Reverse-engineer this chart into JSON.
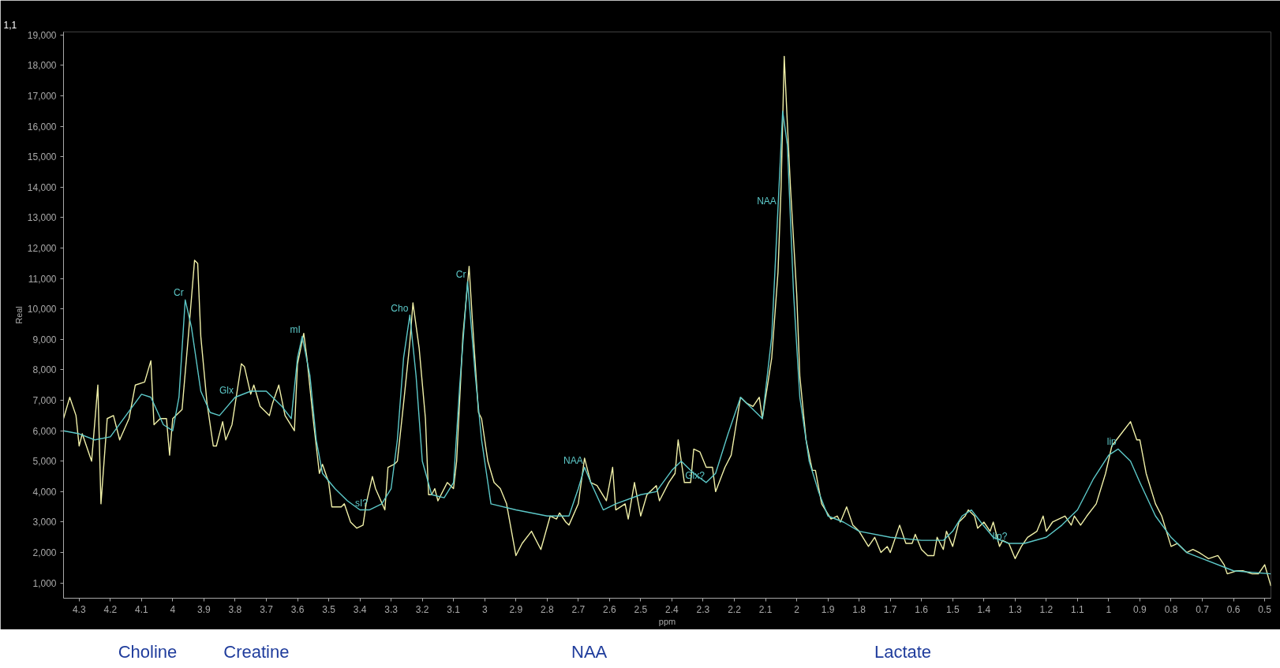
{
  "chart_data": {
    "type": "line",
    "xlabel": "ppm",
    "ylabel": "Real",
    "xlim": [
      4.35,
      0.48
    ],
    "ylim": [
      500,
      19100
    ],
    "xticks": [
      4.3,
      4.2,
      4.1,
      4,
      3.9,
      3.8,
      3.7,
      3.6,
      3.5,
      3.4,
      3.3,
      3.2,
      3.1,
      3,
      2.9,
      2.8,
      2.7,
      2.6,
      2.5,
      2.4,
      2.3,
      2.2,
      2.1,
      2,
      1.9,
      1.8,
      1.7,
      1.6,
      1.5,
      1.4,
      1.3,
      1.2,
      1.1,
      1,
      0.9,
      0.8,
      0.7,
      0.6,
      0.5
    ],
    "yticks": [
      {
        "value": 1000,
        "label": "1,000"
      },
      {
        "value": 2000,
        "label": "2,000"
      },
      {
        "value": 3000,
        "label": "3,000"
      },
      {
        "value": 4000,
        "label": "4,000"
      },
      {
        "value": 5000,
        "label": "5,000"
      },
      {
        "value": 6000,
        "label": "6,000"
      },
      {
        "value": 7000,
        "label": "7,000"
      },
      {
        "value": 8000,
        "label": "8,000"
      },
      {
        "value": 9000,
        "label": "9,000"
      },
      {
        "value": 10000,
        "label": "10,000"
      },
      {
        "value": 11000,
        "label": "11,000"
      },
      {
        "value": 12000,
        "label": "12,000"
      },
      {
        "value": 13000,
        "label": "13,000"
      },
      {
        "value": 14000,
        "label": "14,000"
      },
      {
        "value": 15000,
        "label": "15,000"
      },
      {
        "value": 16000,
        "label": "16,000"
      },
      {
        "value": 17000,
        "label": "17,000"
      },
      {
        "value": 18000,
        "label": "18,000"
      },
      {
        "value": 19000,
        "label": "19,000"
      }
    ],
    "series": [
      {
        "color": "#f0f0a8",
        "x": [
          4.35,
          4.33,
          4.31,
          4.3,
          4.29,
          4.26,
          4.24,
          4.23,
          4.21,
          4.19,
          4.17,
          4.14,
          4.12,
          4.09,
          4.07,
          4.06,
          4.04,
          4.02,
          4.01,
          4.0,
          3.97,
          3.95,
          3.93,
          3.92,
          3.91,
          3.89,
          3.87,
          3.86,
          3.84,
          3.83,
          3.81,
          3.78,
          3.77,
          3.75,
          3.74,
          3.72,
          3.69,
          3.68,
          3.66,
          3.64,
          3.61,
          3.6,
          3.58,
          3.57,
          3.55,
          3.53,
          3.52,
          3.5,
          3.49,
          3.46,
          3.45,
          3.43,
          3.41,
          3.39,
          3.38,
          3.36,
          3.35,
          3.32,
          3.31,
          3.29,
          3.28,
          3.26,
          3.24,
          3.23,
          3.21,
          3.19,
          3.18,
          3.17,
          3.16,
          3.15,
          3.12,
          3.1,
          3.09,
          3.07,
          3.05,
          3.04,
          3.02,
          3.01,
          2.99,
          2.97,
          2.95,
          2.93,
          2.9,
          2.88,
          2.85,
          2.82,
          2.79,
          2.77,
          2.76,
          2.74,
          2.73,
          2.7,
          2.68,
          2.66,
          2.64,
          2.61,
          2.59,
          2.58,
          2.55,
          2.54,
          2.52,
          2.5,
          2.48,
          2.45,
          2.44,
          2.41,
          2.39,
          2.38,
          2.36,
          2.34,
          2.33,
          2.31,
          2.29,
          2.27,
          2.26,
          2.23,
          2.21,
          2.18,
          2.16,
          2.14,
          2.12,
          2.11,
          2.08,
          2.06,
          2.05,
          2.04,
          2.03,
          2.02,
          2.0,
          1.99,
          1.97,
          1.95,
          1.94,
          1.92,
          1.89,
          1.87,
          1.86,
          1.84,
          1.82,
          1.8,
          1.77,
          1.75,
          1.73,
          1.71,
          1.7,
          1.67,
          1.65,
          1.63,
          1.62,
          1.6,
          1.58,
          1.56,
          1.55,
          1.53,
          1.52,
          1.5,
          1.48,
          1.46,
          1.45,
          1.43,
          1.42,
          1.4,
          1.38,
          1.37,
          1.35,
          1.34,
          1.32,
          1.3,
          1.28,
          1.26,
          1.23,
          1.21,
          1.2,
          1.18,
          1.16,
          1.14,
          1.12,
          1.11,
          1.09,
          1.07,
          1.04,
          1.01,
          0.99,
          0.96,
          0.93,
          0.91,
          0.9,
          0.88,
          0.85,
          0.83,
          0.8,
          0.78,
          0.75,
          0.73,
          0.71,
          0.68,
          0.65,
          0.63,
          0.62,
          0.59,
          0.57,
          0.54,
          0.52,
          0.5,
          0.48
        ],
        "values": [
          6400,
          7100,
          6500,
          5500,
          5900,
          5000,
          7500,
          3600,
          6400,
          6500,
          5700,
          6400,
          7500,
          7600,
          8300,
          6200,
          6400,
          6400,
          5200,
          6400,
          6700,
          9100,
          11600,
          11500,
          9100,
          6900,
          5500,
          5500,
          6300,
          5700,
          6200,
          8200,
          8100,
          7200,
          7500,
          6800,
          6500,
          6900,
          7500,
          6500,
          6000,
          8200,
          9200,
          8400,
          6400,
          4600,
          4900,
          4300,
          3500,
          3500,
          3600,
          3000,
          2800,
          2900,
          3600,
          4500,
          4100,
          3400,
          4800,
          4900,
          5000,
          6900,
          8900,
          10200,
          8700,
          6400,
          3900,
          3900,
          4100,
          3700,
          4300,
          4100,
          5000,
          9100,
          11400,
          9700,
          6600,
          6400,
          5000,
          4300,
          4100,
          3600,
          1900,
          2300,
          2700,
          2100,
          3200,
          3100,
          3300,
          3000,
          2900,
          3600,
          5100,
          4300,
          4200,
          3700,
          4800,
          3400,
          3600,
          3100,
          4300,
          3200,
          3900,
          4200,
          3700,
          4300,
          4600,
          5700,
          4300,
          4300,
          5400,
          5300,
          4800,
          4800,
          4000,
          4800,
          5200,
          7100,
          6900,
          6800,
          7100,
          6400,
          8400,
          11200,
          14000,
          18300,
          16100,
          14000,
          10500,
          7800,
          5700,
          4700,
          4700,
          3600,
          3100,
          3200,
          3000,
          3500,
          2900,
          2700,
          2200,
          2500,
          2000,
          2200,
          2000,
          2900,
          2300,
          2300,
          2600,
          2100,
          1900,
          1900,
          2500,
          2100,
          2700,
          2200,
          3000,
          3200,
          3400,
          3200,
          2800,
          3000,
          2700,
          3000,
          2200,
          2400,
          2300,
          1800,
          2200,
          2500,
          2700,
          3200,
          2700,
          3000,
          3100,
          3200,
          2900,
          3200,
          2900,
          3200,
          3600,
          4600,
          5500,
          5900,
          6300,
          5700,
          5700,
          4600,
          3600,
          3200,
          2200,
          2300,
          2000,
          2100,
          2000,
          1800,
          1900,
          1600,
          1300,
          1400,
          1400,
          1300,
          1300,
          1600,
          900
        ]
      },
      {
        "color": "#5cc8c8",
        "x": [
          4.35,
          4.3,
          4.25,
          4.2,
          4.15,
          4.1,
          4.07,
          4.03,
          4.0,
          3.98,
          3.96,
          3.94,
          3.91,
          3.88,
          3.85,
          3.8,
          3.75,
          3.7,
          3.65,
          3.62,
          3.6,
          3.585,
          3.56,
          3.54,
          3.52,
          3.48,
          3.44,
          3.4,
          3.37,
          3.33,
          3.3,
          3.28,
          3.26,
          3.24,
          3.22,
          3.2,
          3.17,
          3.13,
          3.1,
          3.08,
          3.055,
          3.03,
          3.01,
          2.98,
          2.9,
          2.8,
          2.73,
          2.7,
          2.68,
          2.66,
          2.62,
          2.58,
          2.5,
          2.45,
          2.4,
          2.37,
          2.33,
          2.29,
          2.26,
          2.22,
          2.18,
          2.13,
          2.11,
          2.08,
          2.06,
          2.045,
          2.03,
          2.01,
          1.99,
          1.96,
          1.93,
          1.9,
          1.85,
          1.8,
          1.7,
          1.6,
          1.53,
          1.5,
          1.47,
          1.44,
          1.41,
          1.37,
          1.32,
          1.27,
          1.2,
          1.15,
          1.1,
          1.05,
          1.0,
          0.97,
          0.93,
          0.9,
          0.85,
          0.8,
          0.75,
          0.7,
          0.6,
          0.48
        ],
        "values": [
          6000,
          5900,
          5700,
          5800,
          6500,
          7200,
          7100,
          6200,
          6000,
          7100,
          10300,
          9400,
          7300,
          6600,
          6500,
          7100,
          7300,
          7300,
          6800,
          6400,
          8400,
          9100,
          7800,
          5700,
          4600,
          4100,
          3700,
          3400,
          3400,
          3600,
          4100,
          5700,
          8400,
          9800,
          7800,
          5000,
          3900,
          3800,
          4300,
          7500,
          10900,
          7800,
          5700,
          3600,
          3400,
          3200,
          3200,
          4100,
          4800,
          4300,
          3400,
          3600,
          3900,
          4000,
          4700,
          5000,
          4600,
          4300,
          4600,
          5900,
          7100,
          6600,
          6400,
          9100,
          13300,
          16500,
          15400,
          10500,
          7100,
          5000,
          4000,
          3200,
          3000,
          2700,
          2500,
          2400,
          2400,
          2700,
          3200,
          3400,
          3000,
          2500,
          2300,
          2300,
          2500,
          2900,
          3400,
          4400,
          5200,
          5400,
          5000,
          4300,
          3200,
          2500,
          2000,
          1800,
          1400,
          1300
        ]
      }
    ],
    "annotations": [
      "1,1",
      {
        "text": "Cr",
        "x": 3.96,
        "y": 10300
      },
      {
        "text": "Glx",
        "x": 3.8,
        "y": 7100
      },
      {
        "text": "mI",
        "x": 3.585,
        "y": 9100
      },
      {
        "text": "sI?",
        "x": 3.37,
        "y": 3400
      },
      {
        "text": "Cho",
        "x": 3.24,
        "y": 9800
      },
      {
        "text": "Cr",
        "x": 3.055,
        "y": 10900
      },
      {
        "text": "NAA",
        "x": 2.68,
        "y": 4800
      },
      {
        "text": "Glx?",
        "x": 2.29,
        "y": 4300
      },
      {
        "text": "NAA",
        "x": 2.06,
        "y": 13300
      },
      {
        "text": "lip?",
        "x": 1.32,
        "y": 2300
      },
      {
        "text": "lip",
        "x": 0.97,
        "y": 5400
      },
      "Choline",
      "Creatine",
      "NAA",
      "Lactate"
    ]
  }
}
